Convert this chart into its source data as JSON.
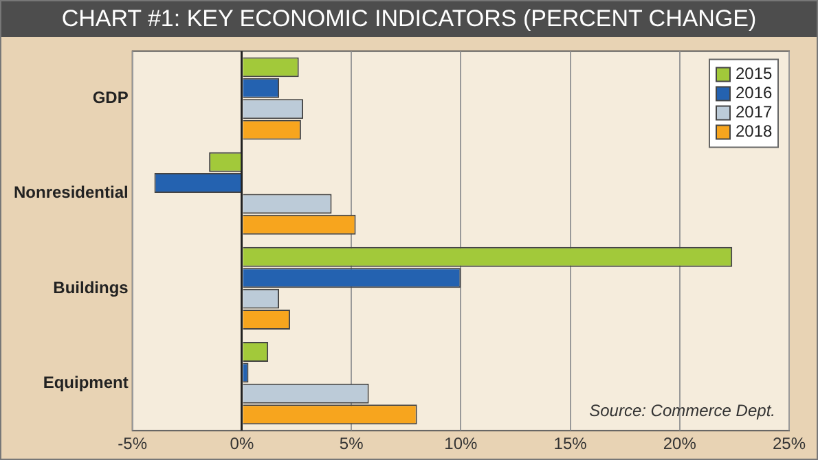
{
  "chart_data": {
    "type": "bar",
    "orientation": "horizontal",
    "title": "CHART #1: KEY ECONOMIC INDICATORS (PERCENT CHANGE)",
    "categories": [
      "GDP",
      "Nonresidential",
      "Buildings",
      "Equipment"
    ],
    "series": [
      {
        "name": "2015",
        "color": "#a2c93a",
        "values": [
          2.6,
          -1.5,
          22.4,
          1.2
        ]
      },
      {
        "name": "2016",
        "color": "#2462b0",
        "values": [
          1.7,
          -4.0,
          10.0,
          0.3
        ]
      },
      {
        "name": "2017",
        "color": "#bccbd8",
        "values": [
          2.8,
          4.1,
          1.7,
          5.8
        ]
      },
      {
        "name": "2018",
        "color": "#f7a51e",
        "values": [
          2.7,
          5.2,
          2.2,
          8.0
        ]
      }
    ],
    "xlim": [
      -5,
      25
    ],
    "xticks": [
      {
        "value": -5,
        "label": "-5%"
      },
      {
        "value": 0,
        "label": "0%"
      },
      {
        "value": 5,
        "label": "5%"
      },
      {
        "value": 10,
        "label": "10%"
      },
      {
        "value": 15,
        "label": "15%"
      },
      {
        "value": 20,
        "label": "20%"
      },
      {
        "value": 25,
        "label": "25%"
      }
    ],
    "grid": "x",
    "legend": "top right",
    "annotations": [
      "Source: Commerce Dept."
    ]
  }
}
